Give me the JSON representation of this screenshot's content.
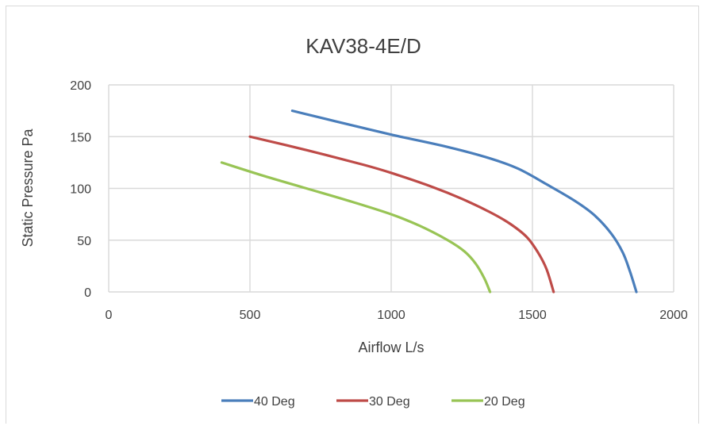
{
  "chart_data": {
    "type": "line",
    "title": "KAV38-4E/D",
    "xlabel": "Airflow L/s",
    "ylabel": "Static Pressure Pa",
    "xlim": [
      0,
      2000
    ],
    "ylim": [
      0,
      200
    ],
    "x_ticks": [
      0,
      500,
      1000,
      1500,
      2000
    ],
    "y_ticks": [
      0,
      50,
      100,
      150,
      200
    ],
    "grid": true,
    "legend_position": "bottom",
    "series": [
      {
        "name": "40 Deg",
        "color": "#4a7ebb",
        "points": [
          [
            650,
            175
          ],
          [
            800,
            165
          ],
          [
            1000,
            152
          ],
          [
            1200,
            140
          ],
          [
            1350,
            129
          ],
          [
            1450,
            119
          ],
          [
            1550,
            104
          ],
          [
            1650,
            88
          ],
          [
            1720,
            74
          ],
          [
            1780,
            56
          ],
          [
            1820,
            38
          ],
          [
            1845,
            20
          ],
          [
            1868,
            0
          ]
        ]
      },
      {
        "name": "30 Deg",
        "color": "#be4b48",
        "points": [
          [
            500,
            150
          ],
          [
            700,
            137
          ],
          [
            900,
            123
          ],
          [
            1000,
            115
          ],
          [
            1150,
            101
          ],
          [
            1250,
            90
          ],
          [
            1350,
            77
          ],
          [
            1420,
            66
          ],
          [
            1480,
            53
          ],
          [
            1520,
            38
          ],
          [
            1550,
            22
          ],
          [
            1575,
            0
          ]
        ]
      },
      {
        "name": "20 Deg",
        "color": "#98c455",
        "points": [
          [
            400,
            125
          ],
          [
            550,
            112
          ],
          [
            700,
            100
          ],
          [
            850,
            88
          ],
          [
            1000,
            75
          ],
          [
            1100,
            64
          ],
          [
            1200,
            50
          ],
          [
            1260,
            39
          ],
          [
            1300,
            27
          ],
          [
            1330,
            13
          ],
          [
            1350,
            0
          ]
        ]
      }
    ]
  }
}
